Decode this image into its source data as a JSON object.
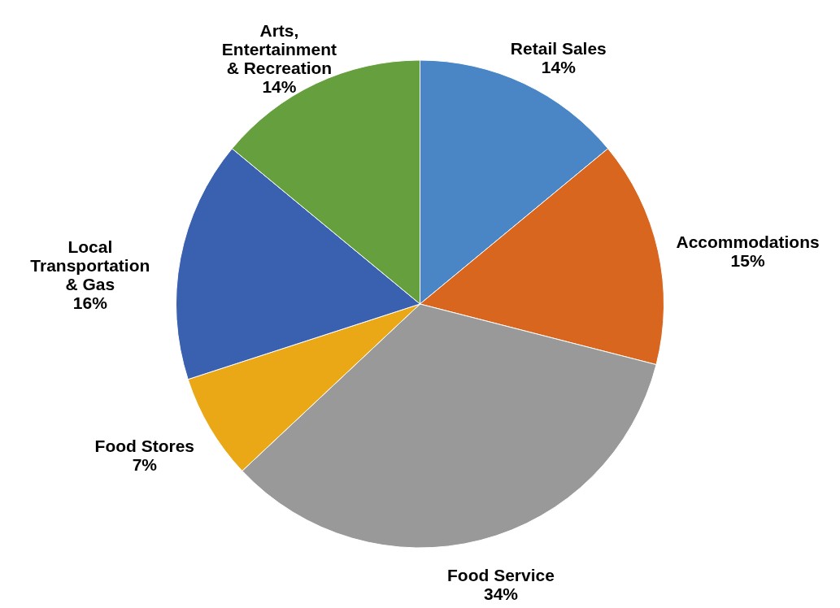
{
  "chart_data": {
    "type": "pie",
    "categories": [
      "Retail Sales",
      "Accommodations",
      "Food Service",
      "Food Stores",
      "Local Transportation & Gas",
      "Arts, Entertainment & Recreation"
    ],
    "values": [
      14,
      15,
      34,
      7,
      16,
      14
    ],
    "colors": [
      "#4a86c5",
      "#d9661f",
      "#999999",
      "#eaa817",
      "#3a60b0",
      "#66a03e"
    ],
    "value_labels": [
      "14%",
      "15%",
      "34%",
      "7%",
      "16%",
      "14%"
    ]
  }
}
